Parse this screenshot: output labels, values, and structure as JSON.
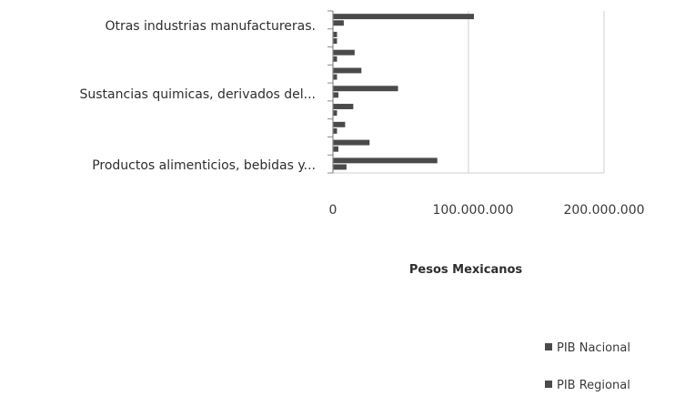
{
  "chart_data": {
    "type": "bar",
    "orientation": "horizontal",
    "categories": [
      "Productos alimenticios, bebidas y...",
      "",
      "",
      "",
      "Sustancias quimicas, derivados del...",
      "",
      "",
      "",
      "Otras industrias manufactureras."
    ],
    "visible_category_labels": {
      "top": "Otras industrias manufactureras.",
      "middle": "Sustancias quimicas, derivados del...",
      "bottom": "Productos alimenticios, bebidas y..."
    },
    "series": [
      {
        "name": "PIB Nacional",
        "values": [
          77000000,
          27000000,
          9000000,
          15000000,
          48000000,
          21000000,
          16000000,
          3000000,
          104000000
        ]
      },
      {
        "name": "PIB Regional",
        "values": [
          10000000,
          4000000,
          3000000,
          3000000,
          4000000,
          3000000,
          3000000,
          3000000,
          8000000
        ]
      }
    ],
    "xlabel": "Pesos Mexicanos",
    "x_tick_labels": [
      "0",
      "100.000.000",
      "200.000.000"
    ],
    "x_ticks": [
      0,
      100000000,
      200000000
    ],
    "xlim": [
      0,
      200000000
    ],
    "legend_position": "bottom-right",
    "grid": true,
    "colors": {
      "bars": "#4a4a4a",
      "grid": "#d0d0d0",
      "axis": "#8a8a8a"
    }
  }
}
